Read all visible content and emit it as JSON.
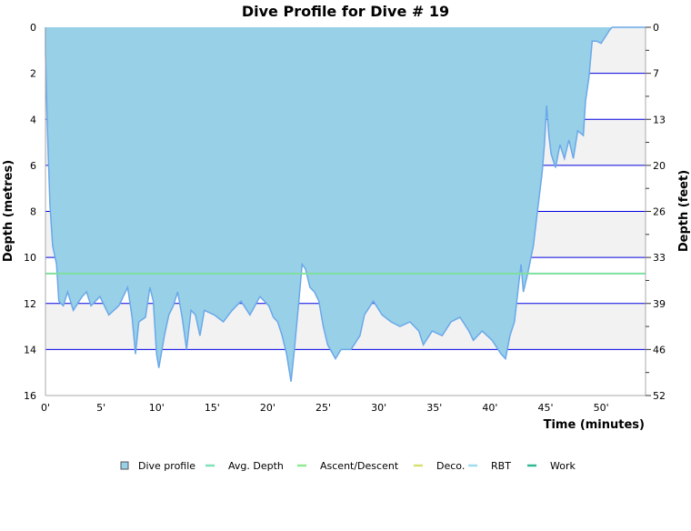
{
  "chart_data": {
    "type": "area",
    "title": "Dive Profile for Dive # 19",
    "xlabel": "Time (minutes)",
    "ylabel": "Depth (metres)",
    "y2label": "Depth (feet)",
    "xlim": [
      0,
      54
    ],
    "ylim": [
      0,
      16
    ],
    "y_inverted": true,
    "grid": true,
    "x_ticks": [
      "0'",
      "5'",
      "10'",
      "15'",
      "20'",
      "25'",
      "30'",
      "35'",
      "40'",
      "45'",
      "50'"
    ],
    "x_tick_values": [
      0,
      5,
      10,
      15,
      20,
      25,
      30,
      35,
      40,
      45,
      50
    ],
    "y_ticks": [
      "0",
      "2",
      "4",
      "6",
      "8",
      "10",
      "12",
      "14",
      "16"
    ],
    "y_tick_values": [
      0,
      2,
      4,
      6,
      8,
      10,
      12,
      14,
      16
    ],
    "y2_ticks": [
      "0",
      "7",
      "13",
      "20",
      "26",
      "33",
      "39",
      "46",
      "52"
    ],
    "legend_position": "bottom",
    "legend": [
      {
        "name": "Dive profile",
        "color": "#98d0e8"
      },
      {
        "name": "Avg. Depth",
        "color": "#7ee0b8"
      },
      {
        "name": "Ascent/Descent",
        "color": "#90e890"
      },
      {
        "name": "Deco.",
        "color": "#d8e070"
      },
      {
        "name": "RBT",
        "color": "#a0dcf0"
      },
      {
        "name": "Work",
        "color": "#30b890"
      }
    ],
    "avg_depth": 10.7,
    "series": [
      {
        "name": "Dive profile",
        "points": [
          [
            0,
            0
          ],
          [
            0,
            1.1
          ],
          [
            0.15,
            4
          ],
          [
            0.4,
            7.7
          ],
          [
            0.65,
            9.5
          ],
          [
            1,
            10.3
          ],
          [
            1.2,
            11.9
          ],
          [
            1.6,
            12.1
          ],
          [
            2,
            11.5
          ],
          [
            2.5,
            12.3
          ],
          [
            3.3,
            11.7
          ],
          [
            3.7,
            11.5
          ],
          [
            4.1,
            12.1
          ],
          [
            4.9,
            11.7
          ],
          [
            5.7,
            12.5
          ],
          [
            6.6,
            12.1
          ],
          [
            7.4,
            11.3
          ],
          [
            7.8,
            12.6
          ],
          [
            8.1,
            14.2
          ],
          [
            8.4,
            12.8
          ],
          [
            9,
            12.6
          ],
          [
            9.4,
            11.3
          ],
          [
            9.7,
            11.9
          ],
          [
            10,
            14.2
          ],
          [
            10.2,
            14.8
          ],
          [
            10.7,
            13.4
          ],
          [
            11.1,
            12.5
          ],
          [
            11.5,
            12.1
          ],
          [
            11.9,
            11.5
          ],
          [
            12.3,
            12.6
          ],
          [
            12.7,
            14
          ],
          [
            13.1,
            12.3
          ],
          [
            13.5,
            12.5
          ],
          [
            13.9,
            13.4
          ],
          [
            14.3,
            12.3
          ],
          [
            15.2,
            12.5
          ],
          [
            16,
            12.8
          ],
          [
            16.8,
            12.3
          ],
          [
            17.6,
            11.9
          ],
          [
            18.4,
            12.5
          ],
          [
            19.3,
            11.7
          ],
          [
            20.1,
            12.1
          ],
          [
            20.5,
            12.6
          ],
          [
            20.9,
            12.8
          ],
          [
            21.3,
            13.4
          ],
          [
            21.7,
            14.2
          ],
          [
            22.1,
            15.4
          ],
          [
            22.4,
            14
          ],
          [
            22.8,
            11.9
          ],
          [
            23.1,
            10.3
          ],
          [
            23.4,
            10.5
          ],
          [
            23.8,
            11.3
          ],
          [
            24.2,
            11.5
          ],
          [
            24.6,
            11.9
          ],
          [
            25,
            13
          ],
          [
            25.4,
            13.8
          ],
          [
            26.1,
            14.4
          ],
          [
            26.6,
            14
          ],
          [
            27.5,
            14
          ],
          [
            28.3,
            13.4
          ],
          [
            28.7,
            12.5
          ],
          [
            29.5,
            11.9
          ],
          [
            30.3,
            12.5
          ],
          [
            31.1,
            12.8
          ],
          [
            31.9,
            13
          ],
          [
            32.8,
            12.8
          ],
          [
            33.6,
            13.2
          ],
          [
            34,
            13.8
          ],
          [
            34.8,
            13.2
          ],
          [
            35.7,
            13.4
          ],
          [
            36.5,
            12.8
          ],
          [
            37.3,
            12.6
          ],
          [
            38.1,
            13.2
          ],
          [
            38.5,
            13.6
          ],
          [
            39.3,
            13.2
          ],
          [
            40.2,
            13.6
          ],
          [
            41,
            14.2
          ],
          [
            41.4,
            14.4
          ],
          [
            41.8,
            13.4
          ],
          [
            42.2,
            12.8
          ],
          [
            42.6,
            11.1
          ],
          [
            42.8,
            10.3
          ],
          [
            43,
            11.5
          ],
          [
            43.4,
            10.7
          ],
          [
            43.9,
            9.5
          ],
          [
            44.3,
            7.9
          ],
          [
            44.7,
            6.3
          ],
          [
            44.9,
            5.1
          ],
          [
            45.1,
            3.4
          ],
          [
            45.3,
            4.7
          ],
          [
            45.5,
            5.5
          ],
          [
            45.9,
            6.1
          ],
          [
            46.3,
            5.1
          ],
          [
            46.7,
            5.7
          ],
          [
            47.1,
            4.9
          ],
          [
            47.5,
            5.7
          ],
          [
            47.9,
            4.5
          ],
          [
            48.4,
            4.7
          ],
          [
            48.6,
            3.2
          ],
          [
            48.9,
            2.2
          ],
          [
            49.2,
            0.6
          ],
          [
            49.6,
            0.6
          ],
          [
            50,
            0.7
          ],
          [
            50.4,
            0.4
          ],
          [
            50.8,
            0.1
          ],
          [
            51,
            0
          ],
          [
            54,
            0
          ]
        ]
      }
    ]
  }
}
